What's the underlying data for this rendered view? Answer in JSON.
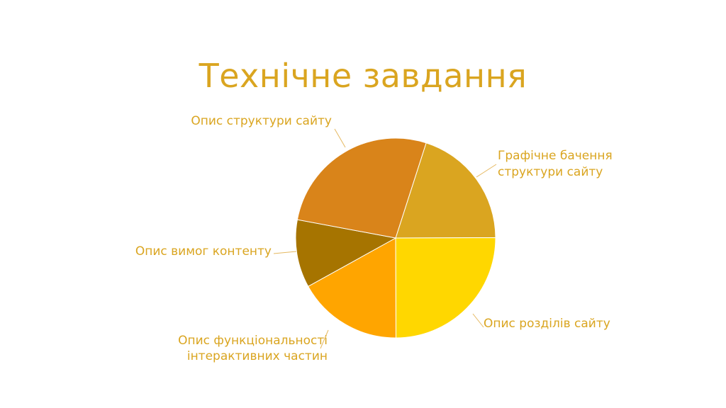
{
  "chart_data": {
    "type": "pie",
    "title": "Технічне завдання",
    "start_angle_deg": 17.8,
    "direction": "clockwise",
    "slices": [
      {
        "label": "Графічне бачення структури сайту",
        "label_lines": [
          "Графічне бачення",
          "структури сайту"
        ],
        "value": 20,
        "color": "#DAA520"
      },
      {
        "label": "Опис розділів сайту",
        "label_lines": [
          "Опис розділів сайту"
        ],
        "value": 25,
        "color": "#FFD700"
      },
      {
        "label": "Опис функціональності інтерактивних частин",
        "label_lines": [
          "Опис функціональності",
          "інтерактивних частин"
        ],
        "value": 17,
        "color": "#FFA500"
      },
      {
        "label": "Опис вимог контенту",
        "label_lines": [
          "Опис вимог контенту"
        ],
        "value": 11,
        "color": "#A67400"
      },
      {
        "label": "Опис структури сайту",
        "label_lines": [
          "Опис структури сайту"
        ],
        "value": 27,
        "color": "#D9841A"
      }
    ],
    "legend": "none (external labels with leader lines)"
  }
}
